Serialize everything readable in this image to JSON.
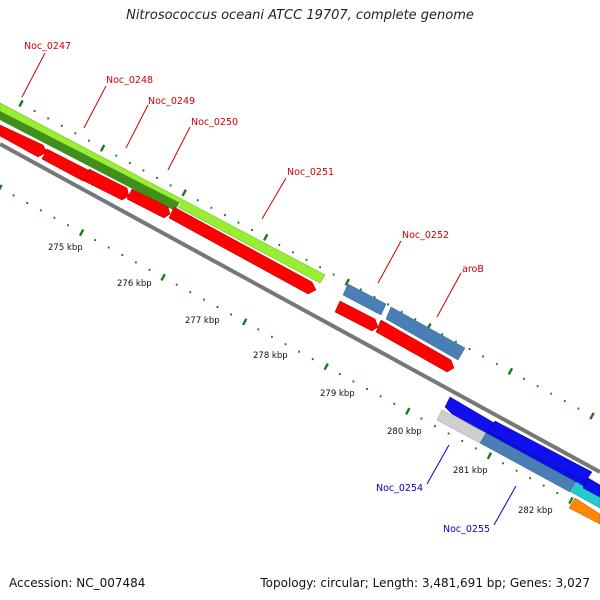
{
  "title": "Nitrosococcus oceani ATCC 19707, complete genome",
  "footer": {
    "accession": "Accession: NC_007484",
    "topology": "Topology: circular; Length: 3,481,691 bp; Genes: 3,027"
  },
  "colors": {
    "forward_label": "#cc0000",
    "reverse_label": "#0000cc",
    "red_gene": "#ff0000",
    "green_gene": "#99ee33",
    "dark_green_gene": "#3f8f1a",
    "steel_gene": "#4a7fb5",
    "blue_gene": "#1010ee",
    "gray_gene": "#cfcfcf",
    "cyan_gene": "#22cccc",
    "orange_gene": "#ff8800",
    "backbone": "#777777",
    "tick": "#1a7a1a"
  },
  "scale": {
    "labels": [
      "275 kbp",
      "276 kbp",
      "277 kbp",
      "278 kbp",
      "279 kbp",
      "280 kbp",
      "281 kbp",
      "282 kbp"
    ]
  },
  "gene_labels": [
    {
      "id": "noc0247",
      "text": "Noc_0247",
      "strand": "forward"
    },
    {
      "id": "noc0248",
      "text": "Noc_0248",
      "strand": "forward"
    },
    {
      "id": "noc0249",
      "text": "Noc_0249",
      "strand": "forward"
    },
    {
      "id": "noc0250",
      "text": "Noc_0250",
      "strand": "forward"
    },
    {
      "id": "noc0251",
      "text": "Noc_0251",
      "strand": "forward"
    },
    {
      "id": "noc0252",
      "text": "Noc_0252",
      "strand": "forward"
    },
    {
      "id": "arob",
      "text": "aroB",
      "strand": "forward"
    },
    {
      "id": "noc0254",
      "text": "Noc_0254",
      "strand": "reverse"
    },
    {
      "id": "noc0255",
      "text": "Noc_0255",
      "strand": "reverse"
    }
  ]
}
